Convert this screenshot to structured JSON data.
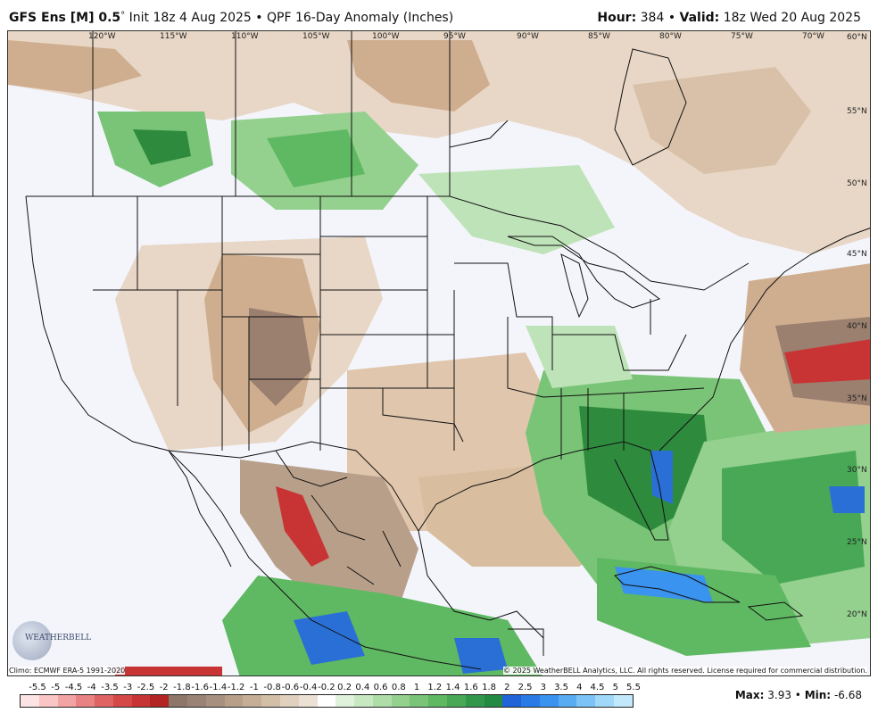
{
  "header": {
    "model": "GFS Ens [M] 0.5",
    "degree": "°",
    "init": "Init 18z 4 Aug 2025",
    "bullet": "•",
    "product": "QPF 16-Day Anomaly (Inches)",
    "hour_label": "Hour:",
    "hour_value": "384",
    "valid_label": "Valid:",
    "valid_value": "18z Wed 20 Aug 2025"
  },
  "map": {
    "longitude_labels": [
      "120°W",
      "115°W",
      "110°W",
      "105°W",
      "100°W",
      "95°W",
      "90°W",
      "85°W",
      "80°W",
      "75°W",
      "70°W"
    ],
    "latitude_labels": [
      "60°N",
      "55°N",
      "50°N",
      "45°N",
      "40°N",
      "35°N",
      "30°N",
      "25°N",
      "20°N"
    ],
    "climo_note": "Climo: ECMWF ERA-5 1991-2020",
    "copyright": "© 2025 WeatherBELL Analytics, LLC. All rights reserved. License required for commercial distribution.",
    "logo_text": "WEATHERBELL",
    "colors": {
      "ocean_bg": "#f3f5fb",
      "dry_light": "#e8d7c6",
      "dry_mid": "#cfae90",
      "dry_dark": "#9b8070",
      "dry_red": "#d04040",
      "wet_light": "#bfe3b8",
      "wet_mid": "#6cc26a",
      "wet_dark": "#2e8b3e",
      "wet_blue": "#2a6fd6",
      "border": "#111111"
    }
  },
  "colorbar": {
    "ticks": [
      "-5.5",
      "-5",
      "-4.5",
      "-4",
      "-3.5",
      "-3",
      "-2.5",
      "-2",
      "-1.8",
      "-1.6",
      "-1.4",
      "-1.2",
      "-1",
      "-0.8",
      "-0.6",
      "-0.4",
      "-0.2",
      "0.2",
      "0.4",
      "0.6",
      "0.8",
      "1",
      "1.2",
      "1.4",
      "1.6",
      "1.8",
      "2",
      "2.5",
      "3",
      "3.5",
      "4",
      "4.5",
      "5",
      "5.5"
    ],
    "colors": [
      "#fde4e4",
      "#f9c5c5",
      "#f2a3a3",
      "#e98282",
      "#df6363",
      "#d44848",
      "#c83434",
      "#b32525",
      "#8e7668",
      "#9a8374",
      "#a89080",
      "#b89f8a",
      "#c6ae96",
      "#d3bea7",
      "#e0d0bd",
      "#ebe1d4",
      "#ffffff",
      "#e0f2dc",
      "#c8e8c2",
      "#aedda8",
      "#94d08e",
      "#7ac477",
      "#5fb862",
      "#48a856",
      "#33974b",
      "#228a42",
      "#2064d8",
      "#2a7ae6",
      "#3a93ee",
      "#58acf2",
      "#7bc4f5",
      "#9fd8f8",
      "#c2e9fb"
    ]
  },
  "stats": {
    "max_label": "Max:",
    "max_value": "3.93",
    "bullet": "•",
    "min_label": "Min:",
    "min_value": "-6.68"
  }
}
